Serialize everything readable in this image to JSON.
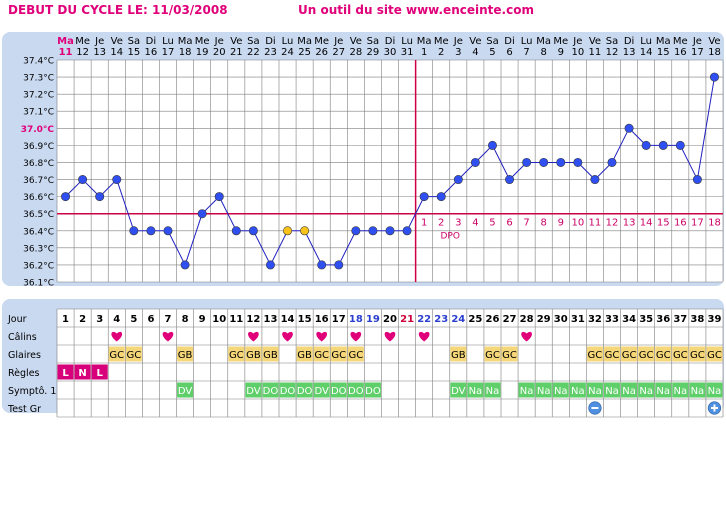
{
  "header": {
    "cycle_start": "DEBUT DU CYCLE LE: 11/03/2008",
    "site_credit": "Un outil du site www.enceinte.com"
  },
  "colors": {
    "panel": "#c9d9f0",
    "grid": "#7f7f7f",
    "point": "#2f4ff0",
    "highlight_point": "#f7c21c",
    "line": "#2020c0",
    "coverline": "#cc0044",
    "ovulation_line": "#cc0044",
    "accent": "#e0007a",
    "dpo_text": "#cc0066",
    "glaires_cell": "#f5d77a",
    "regles_cell": "#d8007a",
    "sympt_cell": "#5fcf6a",
    "test_icon": "#4f8fdf"
  },
  "chart_data": {
    "type": "line",
    "title": "",
    "xlabel": "",
    "ylabel": "",
    "ylim": [
      36.1,
      37.4
    ],
    "y_ticks": [
      "37.4°C",
      "37.3°C",
      "37.2°C",
      "37.1°C",
      "37.0°C",
      "36.9°C",
      "36.8°C",
      "36.7°C",
      "36.6°C",
      "36.5°C",
      "36.4°C",
      "36.3°C",
      "36.2°C",
      "36.1°C"
    ],
    "y_highlight_tick": "37.0°C",
    "weekdays": [
      "Ma",
      "Me",
      "Je",
      "Ve",
      "Sa",
      "Di",
      "Lu",
      "Ma",
      "Me",
      "Je",
      "Ve",
      "Sa",
      "Di",
      "Lu",
      "Ma",
      "Me",
      "Je",
      "Ve",
      "Sa",
      "Di",
      "Lu",
      "Ma",
      "Me",
      "Je",
      "Ve",
      "Sa",
      "Di",
      "Lu",
      "Ma",
      "Me",
      "Je",
      "Ve",
      "Sa",
      "Di",
      "Lu",
      "Ma",
      "Me",
      "Je",
      "Ve"
    ],
    "dates": [
      "11",
      "12",
      "13",
      "14",
      "15",
      "16",
      "17",
      "18",
      "19",
      "20",
      "21",
      "22",
      "23",
      "24",
      "25",
      "26",
      "27",
      "28",
      "29",
      "30",
      "31",
      "1",
      "2",
      "3",
      "4",
      "5",
      "6",
      "7",
      "8",
      "9",
      "10",
      "11",
      "12",
      "13",
      "14",
      "15",
      "16",
      "17",
      "18"
    ],
    "temperatures": [
      36.6,
      36.7,
      36.6,
      36.7,
      36.4,
      36.4,
      36.4,
      36.2,
      36.5,
      36.6,
      36.4,
      36.4,
      36.2,
      36.4,
      36.4,
      36.2,
      36.2,
      36.4,
      36.4,
      36.4,
      36.4,
      36.6,
      36.6,
      36.7,
      36.8,
      36.9,
      36.7,
      36.8,
      36.8,
      36.8,
      36.8,
      36.7,
      36.8,
      37.0,
      36.9,
      36.9,
      36.9,
      36.7,
      37.3
    ],
    "highlighted_days": [
      14,
      15
    ],
    "coverline": 36.5,
    "ovulation_day": 21,
    "dpo_numbers": [
      "1",
      "2",
      "3",
      "4",
      "5",
      "6",
      "7",
      "8",
      "9",
      "10",
      "11",
      "12",
      "13",
      "14",
      "15",
      "16",
      "17",
      "18"
    ],
    "dpo_label": "DPO"
  },
  "table": {
    "row_labels": [
      "Jour",
      "Câlins",
      "Glaires",
      "Règles",
      "Symptô. 1",
      "Test Gr"
    ],
    "days": [
      "1",
      "2",
      "3",
      "4",
      "5",
      "6",
      "7",
      "8",
      "9",
      "10",
      "11",
      "12",
      "13",
      "14",
      "15",
      "16",
      "17",
      "18",
      "19",
      "20",
      "21",
      "22",
      "23",
      "24",
      "25",
      "26",
      "27",
      "28",
      "29",
      "30",
      "31",
      "32",
      "33",
      "34",
      "35",
      "36",
      "37",
      "38",
      "39"
    ],
    "blue_days": [
      18,
      19,
      22,
      23,
      24
    ],
    "red_days": [
      21
    ],
    "calins_days": [
      4,
      7,
      12,
      14,
      16,
      18,
      20,
      22,
      28
    ],
    "calins_symbol": "heart",
    "glaires": {
      "4": "GC",
      "5": "GC",
      "8": "GB",
      "11": "GC",
      "12": "GB",
      "13": "GB",
      "15": "GB",
      "16": "GC",
      "17": "GC",
      "18": "GC",
      "24": "GB",
      "26": "GC",
      "27": "GC",
      "32": "GC",
      "33": "GC",
      "34": "GC",
      "35": "GC",
      "36": "GC",
      "37": "GC",
      "38": "GC",
      "39": "GC"
    },
    "regles": {
      "1": "L",
      "2": "N",
      "3": "L"
    },
    "symptome": {
      "8": "DV",
      "12": "DV",
      "13": "DO",
      "14": "DO",
      "15": "DO",
      "16": "DV",
      "17": "DO",
      "18": "DO",
      "19": "DO",
      "24": "DV",
      "25": "Na",
      "26": "Na",
      "28": "Na",
      "29": "Na",
      "30": "Na",
      "31": "Na",
      "32": "Na",
      "33": "Na",
      "34": "Na",
      "35": "Na",
      "36": "Na",
      "37": "Na",
      "38": "Na",
      "39": "Na"
    },
    "tests": {
      "32": "negative",
      "39": "positive"
    }
  }
}
